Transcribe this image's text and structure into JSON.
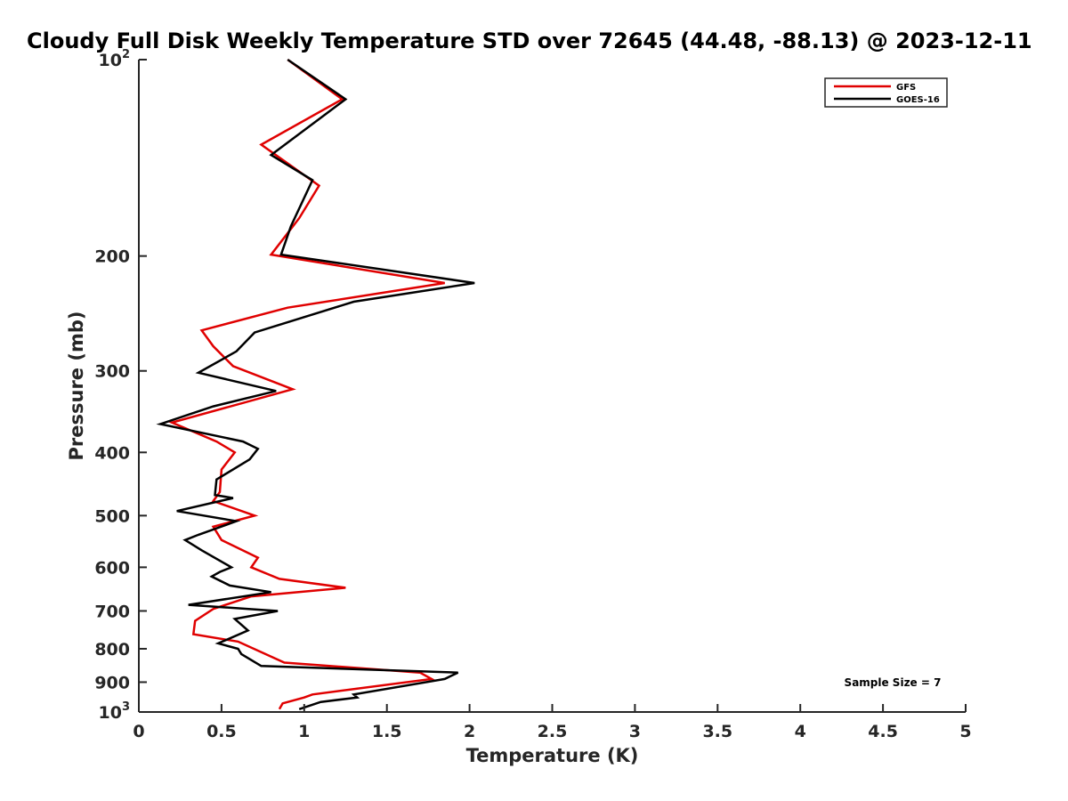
{
  "chart_data": {
    "type": "line",
    "title": "Cloudy Full Disk Weekly Temperature STD over 72645 (44.48, -88.13) @ 2023-12-11",
    "xlabel": "Temperature (K)",
    "ylabel": "Pressure (mb)",
    "xlim": [
      0,
      5
    ],
    "ylim": [
      100,
      1000
    ],
    "y_scale": "log",
    "y_reversed": true,
    "grid": false,
    "legend_position": "top-right",
    "x_ticks": [
      "0",
      "0.5",
      "1",
      "1.5",
      "2",
      "2.5",
      "3",
      "3.5",
      "4",
      "4.5",
      "5"
    ],
    "y_ticks": [
      {
        "value": 100,
        "base": "10",
        "exp": "2"
      },
      {
        "value": 200,
        "label": "200"
      },
      {
        "value": 300,
        "label": "300"
      },
      {
        "value": 400,
        "label": "400"
      },
      {
        "value": 500,
        "label": "500"
      },
      {
        "value": 600,
        "label": "600"
      },
      {
        "value": 700,
        "label": "700"
      },
      {
        "value": 800,
        "label": "800"
      },
      {
        "value": 900,
        "label": "900"
      },
      {
        "value": 1000,
        "base": "10",
        "exp": "3"
      }
    ],
    "annotation": "Sample Size = 7",
    "series": [
      {
        "name": "GFS",
        "color": "#e00000",
        "points": [
          [
            0.9,
            100
          ],
          [
            1.23,
            115
          ],
          [
            0.74,
            135
          ],
          [
            1.09,
            156
          ],
          [
            0.97,
            175
          ],
          [
            0.8,
            199
          ],
          [
            1.85,
            220
          ],
          [
            0.9,
            240
          ],
          [
            0.38,
            260
          ],
          [
            0.45,
            275
          ],
          [
            0.57,
            295
          ],
          [
            0.93,
            320
          ],
          [
            0.2,
            360
          ],
          [
            0.47,
            385
          ],
          [
            0.58,
            400
          ],
          [
            0.5,
            425
          ],
          [
            0.49,
            460
          ],
          [
            0.45,
            475
          ],
          [
            0.7,
            500
          ],
          [
            0.45,
            520
          ],
          [
            0.5,
            545
          ],
          [
            0.72,
            580
          ],
          [
            0.68,
            600
          ],
          [
            0.85,
            625
          ],
          [
            1.25,
            645
          ],
          [
            0.68,
            665
          ],
          [
            0.45,
            695
          ],
          [
            0.34,
            725
          ],
          [
            0.33,
            760
          ],
          [
            0.6,
            780
          ],
          [
            0.88,
            840
          ],
          [
            1.7,
            870
          ],
          [
            1.77,
            890
          ],
          [
            1.05,
            940
          ],
          [
            1.0,
            950
          ],
          [
            0.87,
            970
          ],
          [
            0.85,
            990
          ]
        ]
      },
      {
        "name": "GOES-16",
        "color": "#000000",
        "points": [
          [
            0.9,
            100
          ],
          [
            1.25,
            115
          ],
          [
            0.8,
            140
          ],
          [
            1.05,
            153
          ],
          [
            0.92,
            180
          ],
          [
            0.86,
            199
          ],
          [
            2.03,
            220
          ],
          [
            1.3,
            235
          ],
          [
            0.7,
            262
          ],
          [
            0.59,
            280
          ],
          [
            0.36,
            302
          ],
          [
            0.83,
            322
          ],
          [
            0.45,
            340
          ],
          [
            0.13,
            362
          ],
          [
            0.63,
            385
          ],
          [
            0.72,
            395
          ],
          [
            0.67,
            410
          ],
          [
            0.47,
            440
          ],
          [
            0.46,
            465
          ],
          [
            0.57,
            470
          ],
          [
            0.23,
            492
          ],
          [
            0.59,
            510
          ],
          [
            0.36,
            535
          ],
          [
            0.28,
            545
          ],
          [
            0.38,
            565
          ],
          [
            0.56,
            600
          ],
          [
            0.49,
            610
          ],
          [
            0.44,
            620
          ],
          [
            0.55,
            640
          ],
          [
            0.8,
            655
          ],
          [
            0.3,
            685
          ],
          [
            0.84,
            700
          ],
          [
            0.58,
            720
          ],
          [
            0.66,
            750
          ],
          [
            0.48,
            785
          ],
          [
            0.6,
            800
          ],
          [
            0.62,
            815
          ],
          [
            0.74,
            850
          ],
          [
            1.93,
            870
          ],
          [
            1.85,
            890
          ],
          [
            1.3,
            940
          ],
          [
            1.32,
            950
          ],
          [
            1.1,
            965
          ],
          [
            0.97,
            990
          ]
        ]
      }
    ]
  }
}
